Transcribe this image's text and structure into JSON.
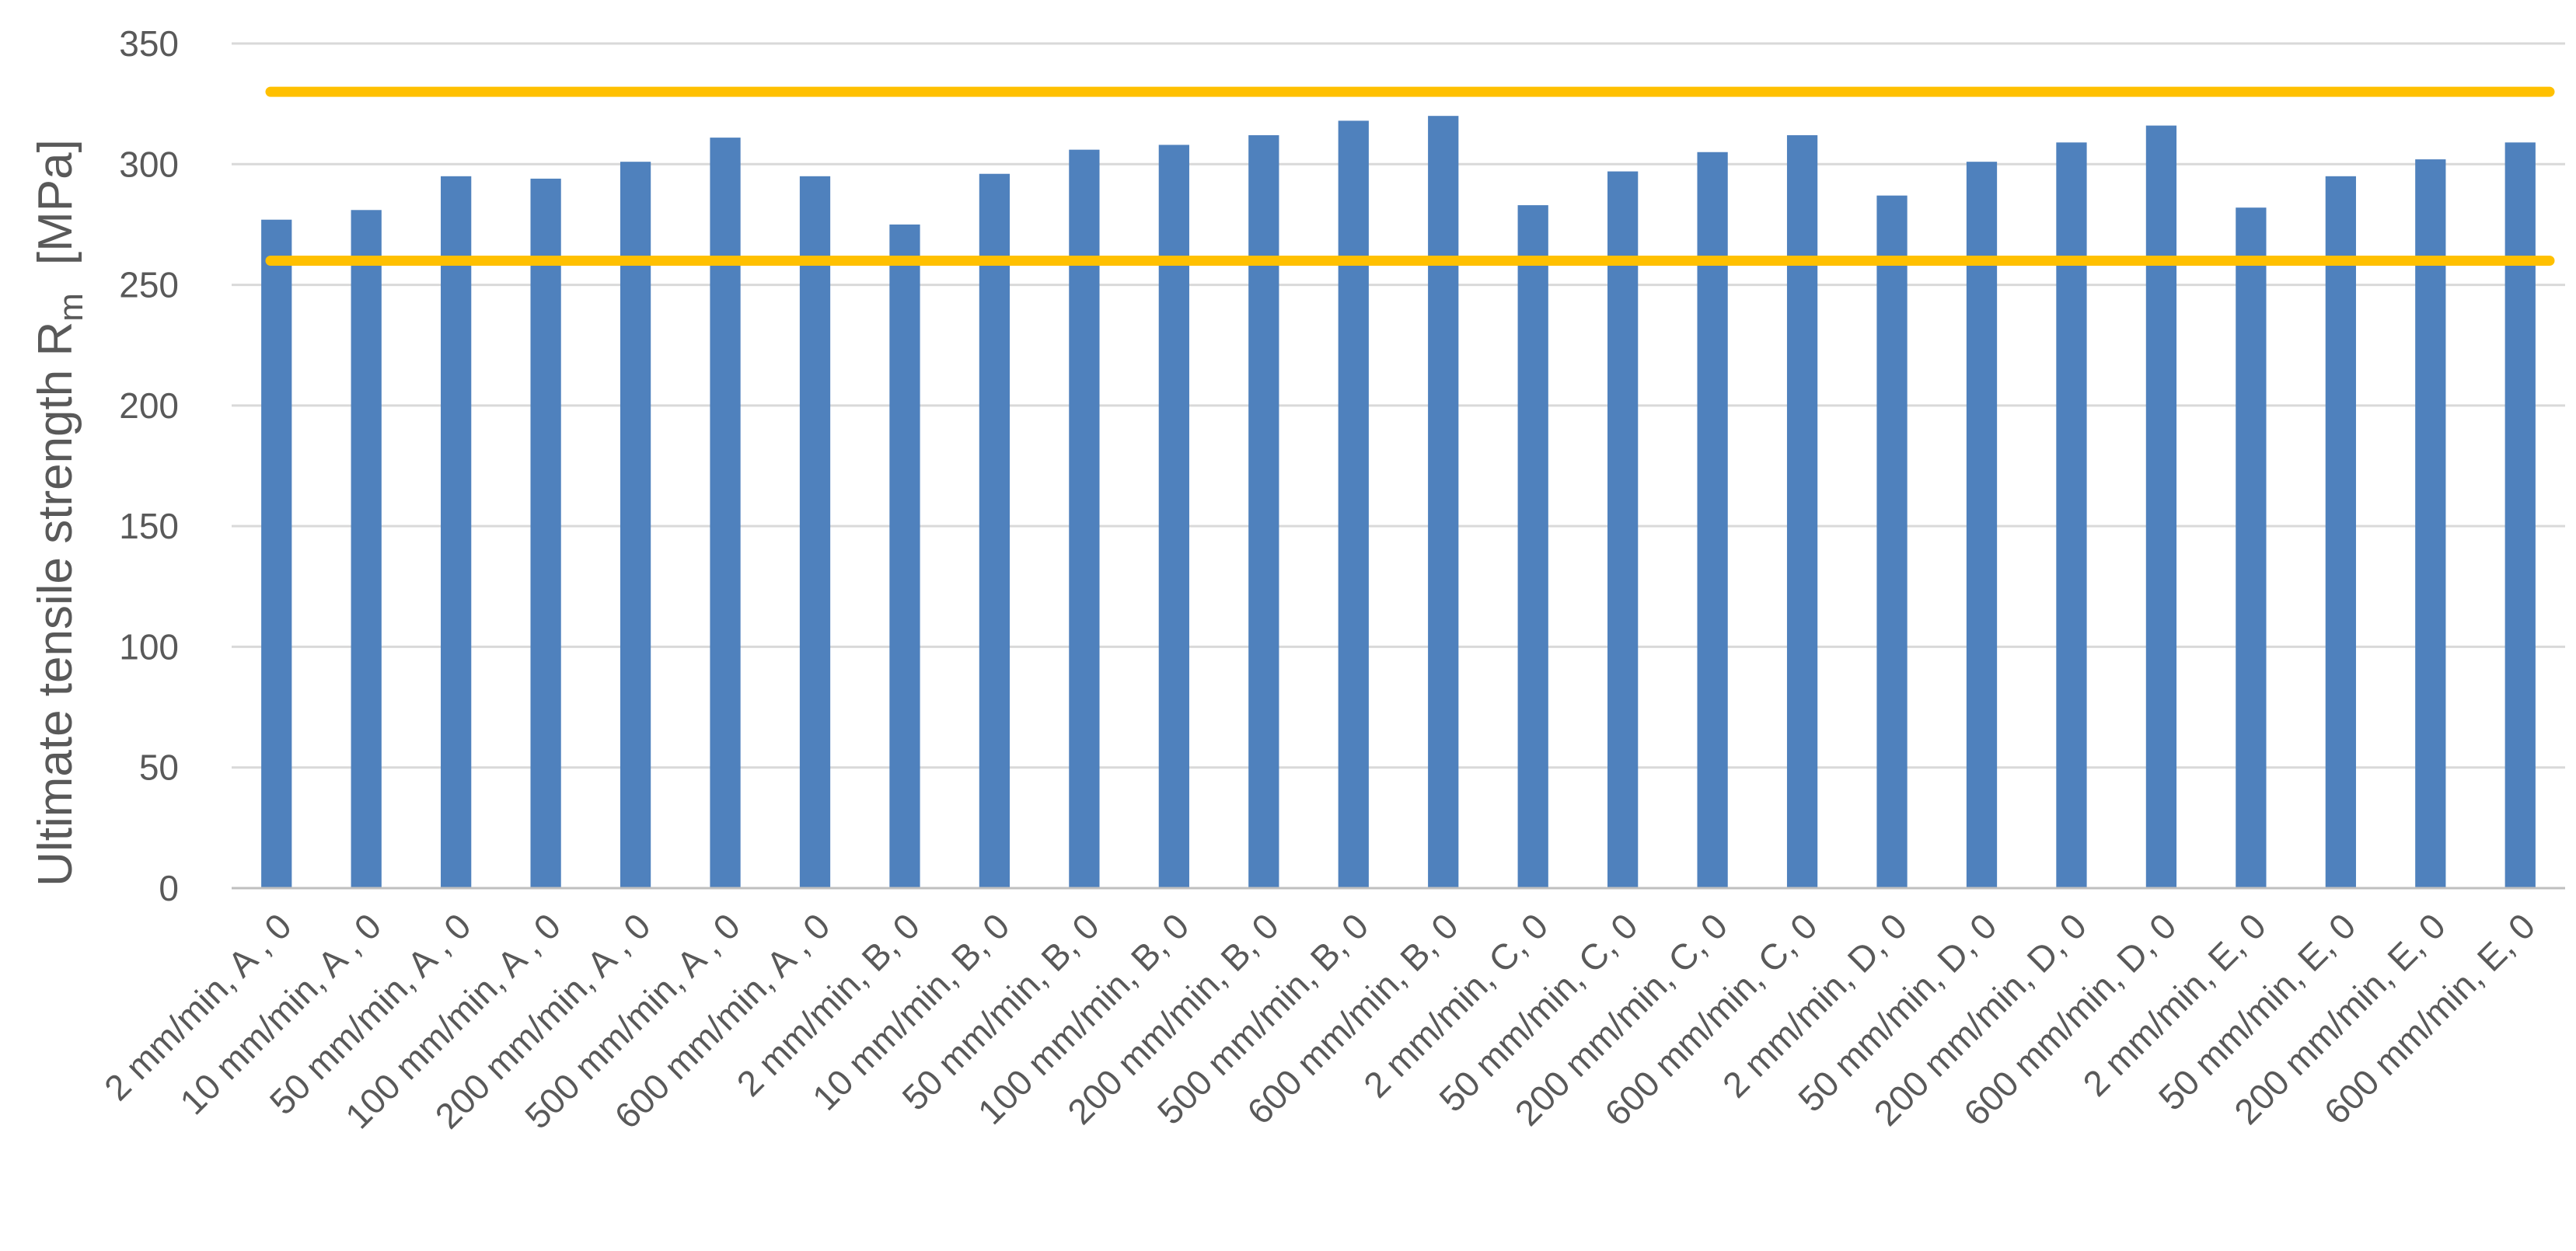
{
  "chart_data": {
    "type": "bar",
    "ylabel_main": "Ultimate tensile strength R",
    "ylabel_subscript": "m",
    "ylabel_unit": "[MPa]",
    "ylim": [
      0,
      350
    ],
    "yticks": [
      0,
      50,
      100,
      150,
      200,
      250,
      300,
      350
    ],
    "grid": true,
    "categories": [
      "2 mm/min,  A , 0",
      "10 mm/min,  A , 0",
      "50 mm/min,  A , 0",
      "100 mm/min,  A , 0",
      "200 mm/min,  A , 0",
      "500 mm/min,  A , 0",
      "600 mm/min,  A , 0",
      "2 mm/min, B, 0",
      "10 mm/min, B, 0",
      "50 mm/min, B, 0",
      "100 mm/min, B, 0",
      "200 mm/min, B, 0",
      "500 mm/min, B, 0",
      "600 mm/min, B, 0",
      "2 mm/min, C, 0",
      "50 mm/min, C, 0",
      "200 mm/min, C, 0",
      "600 mm/min, C, 0",
      "2 mm/min, D, 0",
      "50 mm/min, D, 0",
      "200 mm/min, D, 0",
      "600 mm/min, D, 0",
      "2 mm/min, E, 0",
      "50 mm/min, E, 0",
      "200 mm/min, E, 0",
      "600 mm/min, E, 0"
    ],
    "values": [
      277,
      281,
      295,
      294,
      301,
      311,
      295,
      275,
      296,
      306,
      308,
      312,
      318,
      320,
      283,
      297,
      305,
      312,
      287,
      301,
      309,
      316,
      282,
      295,
      302,
      309
    ],
    "reference_lines": [
      330,
      260
    ],
    "colors": {
      "bar": "#4f81bd",
      "reference": "#ffc000",
      "grid": "#d9d9d9",
      "axis": "#bfbfbf"
    }
  }
}
